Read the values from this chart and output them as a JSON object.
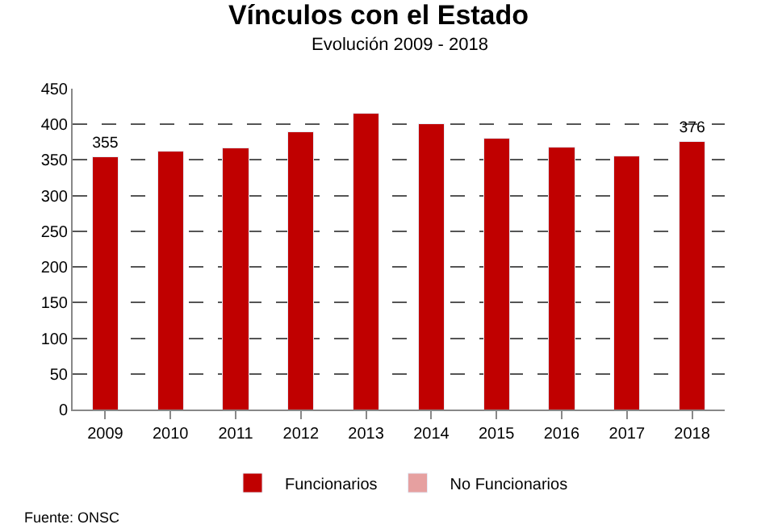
{
  "chart_data": {
    "type": "bar",
    "title": "Vínculos con el Estado",
    "subtitle": "Evolución 2009 - 2018",
    "categories": [
      "2009",
      "2010",
      "2011",
      "2012",
      "2013",
      "2014",
      "2015",
      "2016",
      "2017",
      "2018"
    ],
    "series": [
      {
        "name": "Funcionarios",
        "color": "#c00000",
        "values": [
          355,
          362,
          367,
          390,
          415,
          401,
          381,
          368,
          356,
          376
        ],
        "value_labels": [
          "355",
          null,
          null,
          null,
          null,
          null,
          null,
          null,
          null,
          "376"
        ]
      },
      {
        "name": "No Funcionarios",
        "color": "#e6a0a0",
        "values": [
          null,
          null,
          null,
          null,
          null,
          null,
          null,
          null,
          null,
          null
        ]
      }
    ],
    "stacked": true,
    "ylim": [
      0,
      450
    ],
    "yticks": [
      0,
      50,
      100,
      150,
      200,
      250,
      300,
      350,
      400,
      450
    ],
    "grid": "y",
    "legend": "bottom",
    "annotations": [
      "Fuente: ONSC"
    ]
  }
}
